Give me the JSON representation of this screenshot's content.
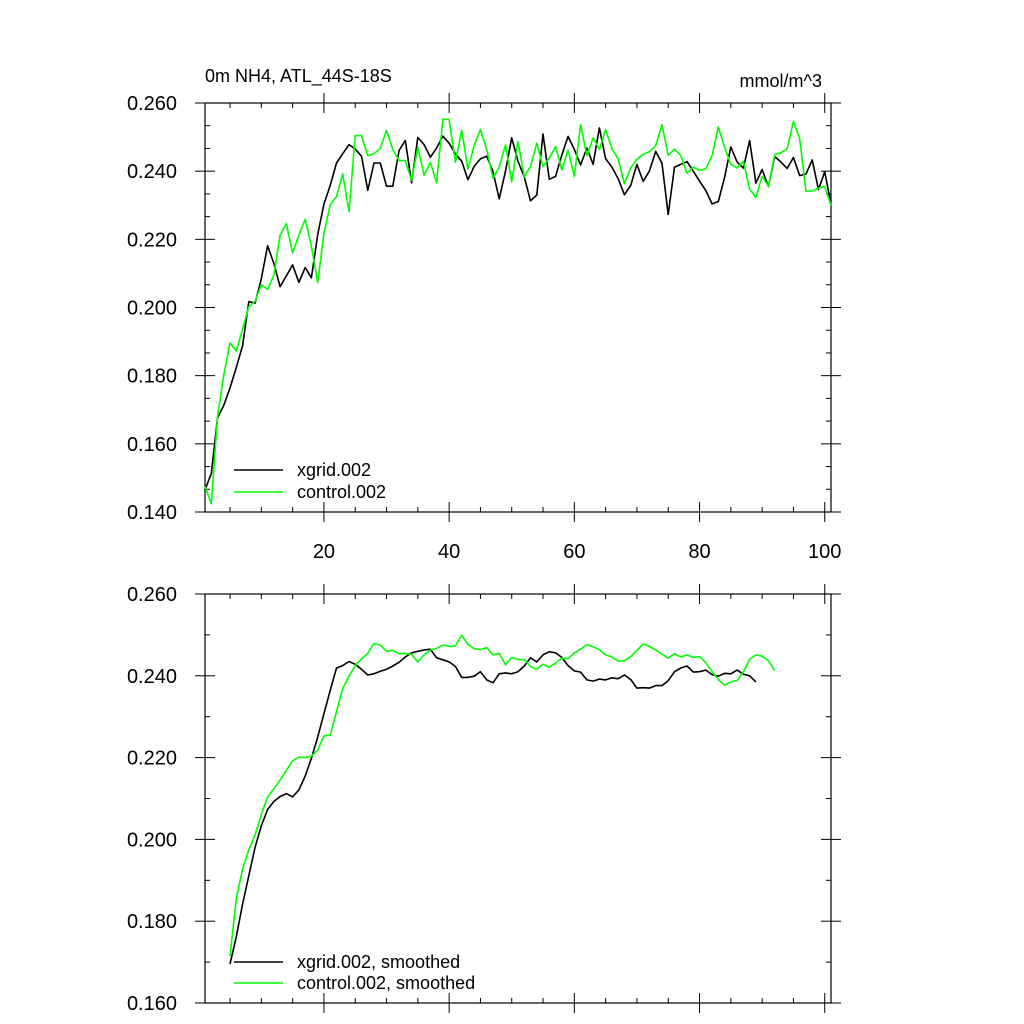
{
  "chart_data": [
    {
      "type": "line",
      "title": "0m NH4, ATL_44S-18S",
      "units": "mmol/m^3",
      "xlabel": "",
      "ylabel": "",
      "xlim": [
        1,
        101
      ],
      "ylim": [
        0.14,
        0.26
      ],
      "xticks": [
        20,
        40,
        60,
        80,
        100
      ],
      "xtick_labels": [
        "20",
        "40",
        "60",
        "80",
        "100"
      ],
      "yticks": [
        0.14,
        0.16,
        0.18,
        0.2,
        0.22,
        0.24,
        0.26
      ],
      "ytick_labels": [
        "0.140",
        "0.160",
        "0.180",
        "0.200",
        "0.220",
        "0.240",
        "0.260"
      ],
      "grid": false,
      "legend_position": "bottom-left",
      "series": [
        {
          "name": "xgrid.002",
          "color": "#000000",
          "x_start": 1,
          "values": [
            0.1465,
            0.1513,
            0.1676,
            0.1713,
            0.1764,
            0.1824,
            0.1888,
            0.2017,
            0.2013,
            0.2084,
            0.2181,
            0.2129,
            0.2061,
            0.2093,
            0.2125,
            0.2074,
            0.2117,
            0.2087,
            0.2214,
            0.2303,
            0.2358,
            0.2424,
            0.2451,
            0.2478,
            0.2465,
            0.2444,
            0.2344,
            0.2424,
            0.2424,
            0.2356,
            0.2356,
            0.2461,
            0.249,
            0.2366,
            0.2499,
            0.2478,
            0.2441,
            0.2468,
            0.2503,
            0.2482,
            0.2451,
            0.2429,
            0.2375,
            0.2414,
            0.2436,
            0.2444,
            0.2399,
            0.2319,
            0.24,
            0.2498,
            0.2429,
            0.2383,
            0.2313,
            0.233,
            0.2509,
            0.2376,
            0.2385,
            0.2447,
            0.2502,
            0.2464,
            0.2418,
            0.2468,
            0.242,
            0.2527,
            0.2437,
            0.2412,
            0.2378,
            0.2331,
            0.2358,
            0.242,
            0.237,
            0.2401,
            0.2458,
            0.2423,
            0.2273,
            0.2412,
            0.242,
            0.2428,
            0.24,
            0.2371,
            0.2343,
            0.2304,
            0.2311,
            0.2382,
            0.2471,
            0.2427,
            0.2409,
            0.249,
            0.2365,
            0.2405,
            0.2355,
            0.2443,
            0.2427,
            0.2408,
            0.244,
            0.2387,
            0.2392,
            0.2433,
            0.2346,
            0.2398,
            0.2304
          ]
        },
        {
          "name": "control.002",
          "color": "#00ff00",
          "x_start": 1,
          "values": [
            0.1475,
            0.1424,
            0.1679,
            0.1802,
            0.1896,
            0.1872,
            0.1937,
            0.2002,
            0.2018,
            0.2067,
            0.2053,
            0.2095,
            0.2213,
            0.2246,
            0.216,
            0.2212,
            0.2259,
            0.218,
            0.2073,
            0.2216,
            0.2302,
            0.2325,
            0.2392,
            0.2281,
            0.2505,
            0.2504,
            0.2445,
            0.2451,
            0.2467,
            0.252,
            0.2463,
            0.2431,
            0.2431,
            0.2373,
            0.247,
            0.2388,
            0.2426,
            0.2366,
            0.2553,
            0.2552,
            0.2426,
            0.252,
            0.2406,
            0.2475,
            0.2522,
            0.2464,
            0.2379,
            0.2412,
            0.2477,
            0.2369,
            0.2487,
            0.2383,
            0.2414,
            0.2482,
            0.2413,
            0.2439,
            0.2472,
            0.2403,
            0.2462,
            0.2385,
            0.2537,
            0.2445,
            0.2498,
            0.2464,
            0.2522,
            0.2466,
            0.2436,
            0.2363,
            0.241,
            0.2435,
            0.245,
            0.2457,
            0.2475,
            0.2536,
            0.2446,
            0.2465,
            0.2446,
            0.2394,
            0.2412,
            0.2402,
            0.2407,
            0.2445,
            0.253,
            0.247,
            0.242,
            0.2409,
            0.2429,
            0.2347,
            0.2323,
            0.2385,
            0.2356,
            0.2449,
            0.2454,
            0.2466,
            0.2546,
            0.2495,
            0.2341,
            0.2342,
            0.235,
            0.2355,
            0.23
          ]
        }
      ]
    },
    {
      "type": "line",
      "title": "",
      "xlabel": "",
      "ylabel": "",
      "xlim": [
        1,
        101
      ],
      "ylim": [
        0.16,
        0.26
      ],
      "yticks": [
        0.16,
        0.18,
        0.2,
        0.22,
        0.24,
        0.26
      ],
      "ytick_labels": [
        "0.160",
        "0.180",
        "0.200",
        "0.220",
        "0.240",
        "0.260"
      ],
      "grid": false,
      "legend_position": "bottom-left",
      "series": [
        {
          "name": "xgrid.002, smoothed",
          "color": "#000000",
          "x_start": 5,
          "values": [
            0.1695,
            0.1762,
            0.1842,
            0.1911,
            0.1981,
            0.2033,
            0.2073,
            0.2093,
            0.2105,
            0.2112,
            0.2104,
            0.2121,
            0.2155,
            0.2198,
            0.225,
            0.2307,
            0.2364,
            0.2419,
            0.2425,
            0.2435,
            0.2428,
            0.2416,
            0.2402,
            0.2405,
            0.2411,
            0.2416,
            0.2424,
            0.2433,
            0.2446,
            0.2456,
            0.246,
            0.2463,
            0.2465,
            0.2444,
            0.2439,
            0.2434,
            0.2423,
            0.2396,
            0.2396,
            0.2399,
            0.241,
            0.239,
            0.2383,
            0.2405,
            0.2407,
            0.2405,
            0.241,
            0.2424,
            0.2444,
            0.2434,
            0.2451,
            0.2459,
            0.2456,
            0.2445,
            0.2425,
            0.2412,
            0.2409,
            0.239,
            0.2387,
            0.2392,
            0.239,
            0.2395,
            0.2393,
            0.2402,
            0.2391,
            0.237,
            0.2371,
            0.237,
            0.2376,
            0.2376,
            0.2388,
            0.241,
            0.2419,
            0.2424,
            0.2409,
            0.241,
            0.2414,
            0.2403,
            0.2399,
            0.2406,
            0.2405,
            0.2414,
            0.2404,
            0.24,
            0.2385
          ]
        },
        {
          "name": "control.002, smoothed",
          "color": "#00ff00",
          "x_start": 5,
          "values": [
            0.1715,
            0.1855,
            0.1928,
            0.1975,
            0.2011,
            0.2061,
            0.2104,
            0.2124,
            0.2145,
            0.2169,
            0.2192,
            0.2201,
            0.22,
            0.2204,
            0.2218,
            0.2253,
            0.2255,
            0.2312,
            0.2369,
            0.2399,
            0.2425,
            0.2441,
            0.2455,
            0.2479,
            0.2475,
            0.246,
            0.2462,
            0.2454,
            0.2455,
            0.2452,
            0.2434,
            0.2451,
            0.2463,
            0.2467,
            0.2475,
            0.2472,
            0.2473,
            0.2499,
            0.2477,
            0.2466,
            0.2464,
            0.2469,
            0.2451,
            0.2455,
            0.2427,
            0.2445,
            0.244,
            0.244,
            0.2423,
            0.2416,
            0.2428,
            0.2421,
            0.2431,
            0.2443,
            0.2442,
            0.2456,
            0.2465,
            0.2476,
            0.2471,
            0.2464,
            0.2451,
            0.2446,
            0.2436,
            0.2437,
            0.2447,
            0.2462,
            0.2478,
            0.2472,
            0.2463,
            0.2453,
            0.2443,
            0.2454,
            0.2446,
            0.2451,
            0.2445,
            0.2447,
            0.2432,
            0.241,
            0.2391,
            0.2377,
            0.2385,
            0.2389,
            0.241,
            0.244,
            0.2451,
            0.2448,
            0.2437,
            0.2413
          ]
        }
      ]
    }
  ]
}
